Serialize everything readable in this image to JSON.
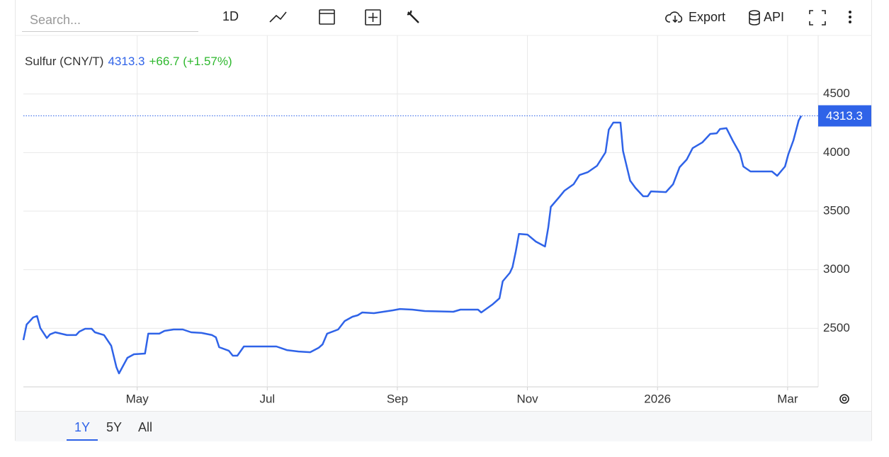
{
  "ui": {
    "search_placeholder": "Search...",
    "interval": "1D",
    "export": "Export",
    "api": "API",
    "ranges": [
      "1Y",
      "5Y",
      "All"
    ]
  },
  "chart_data": {
    "type": "line",
    "change": "+66.7 (+1.57%)",
    "series": [
      {
        "name": "Sulfur (CNY/T)",
        "color": "#2f63e8",
        "x": [
          3.25,
          3.3,
          3.34,
          3.4,
          3.46,
          3.51,
          3.61,
          3.66,
          3.74,
          3.92,
          4.06,
          4.11,
          4.2,
          4.3,
          4.35,
          4.49,
          4.6,
          4.68,
          4.72,
          4.85,
          4.95,
          5.12,
          5.17,
          5.34,
          5.42,
          5.56,
          5.7,
          5.83,
          5.99,
          6.15,
          6.21,
          6.26,
          6.41,
          6.47,
          6.54,
          6.64,
          7.14,
          7.3,
          7.48,
          7.66,
          7.79,
          7.85,
          7.92,
          8.09,
          8.19,
          8.31,
          8.39,
          8.46,
          8.64,
          8.93,
          9.04,
          9.23,
          9.42,
          9.86,
          9.97,
          10.24,
          10.29,
          10.46,
          10.57,
          10.62,
          10.73,
          10.77,
          10.82,
          10.87,
          11.0,
          11.13,
          11.27,
          11.32,
          11.36,
          11.49,
          11.57,
          11.71,
          11.8,
          11.93,
          12.07,
          12.2,
          12.25,
          12.32,
          12.43,
          12.47,
          12.58,
          12.66,
          12.78,
          12.85,
          12.9,
          13.13,
          13.24,
          13.34,
          13.45,
          13.54,
          13.69,
          13.81,
          13.91,
          13.96,
          14.06,
          14.16,
          14.27,
          14.32,
          14.43,
          14.76,
          14.84,
          14.96,
          15.01,
          15.09,
          15.17,
          15.21
        ],
        "values": [
          2399,
          2532,
          2556,
          2593,
          2605,
          2502,
          2417,
          2448,
          2466,
          2442,
          2442,
          2472,
          2496,
          2496,
          2466,
          2442,
          2351,
          2169,
          2115,
          2248,
          2278,
          2284,
          2454,
          2454,
          2478,
          2490,
          2490,
          2466,
          2460,
          2442,
          2423,
          2339,
          2308,
          2266,
          2266,
          2345,
          2345,
          2314,
          2302,
          2296,
          2333,
          2363,
          2454,
          2490,
          2562,
          2599,
          2611,
          2635,
          2629,
          2653,
          2665,
          2659,
          2647,
          2641,
          2659,
          2659,
          2635,
          2702,
          2756,
          2901,
          2974,
          3022,
          3155,
          3306,
          3300,
          3240,
          3198,
          3361,
          3536,
          3621,
          3675,
          3730,
          3808,
          3833,
          3887,
          4002,
          4195,
          4256,
          4256,
          4014,
          3760,
          3699,
          3627,
          3627,
          3669,
          3663,
          3730,
          3875,
          3941,
          4038,
          4087,
          4159,
          4165,
          4201,
          4208,
          4099,
          3990,
          3881,
          3839,
          3839,
          3802,
          3881,
          3984,
          4105,
          4274,
          4313.3
        ]
      }
    ],
    "xlim": [
      3.25,
      15.47
    ],
    "xticks": [
      {
        "value": 5,
        "label": "May"
      },
      {
        "value": 7,
        "label": "Jul"
      },
      {
        "value": 9,
        "label": "Sep"
      },
      {
        "value": 11,
        "label": "Nov"
      },
      {
        "value": 13,
        "label": "2026"
      },
      {
        "value": 15,
        "label": "Mar"
      }
    ],
    "ylim": [
      2000,
      5000
    ],
    "yticks": [
      2500,
      3000,
      3500,
      4000,
      4500
    ],
    "grid": true
  }
}
